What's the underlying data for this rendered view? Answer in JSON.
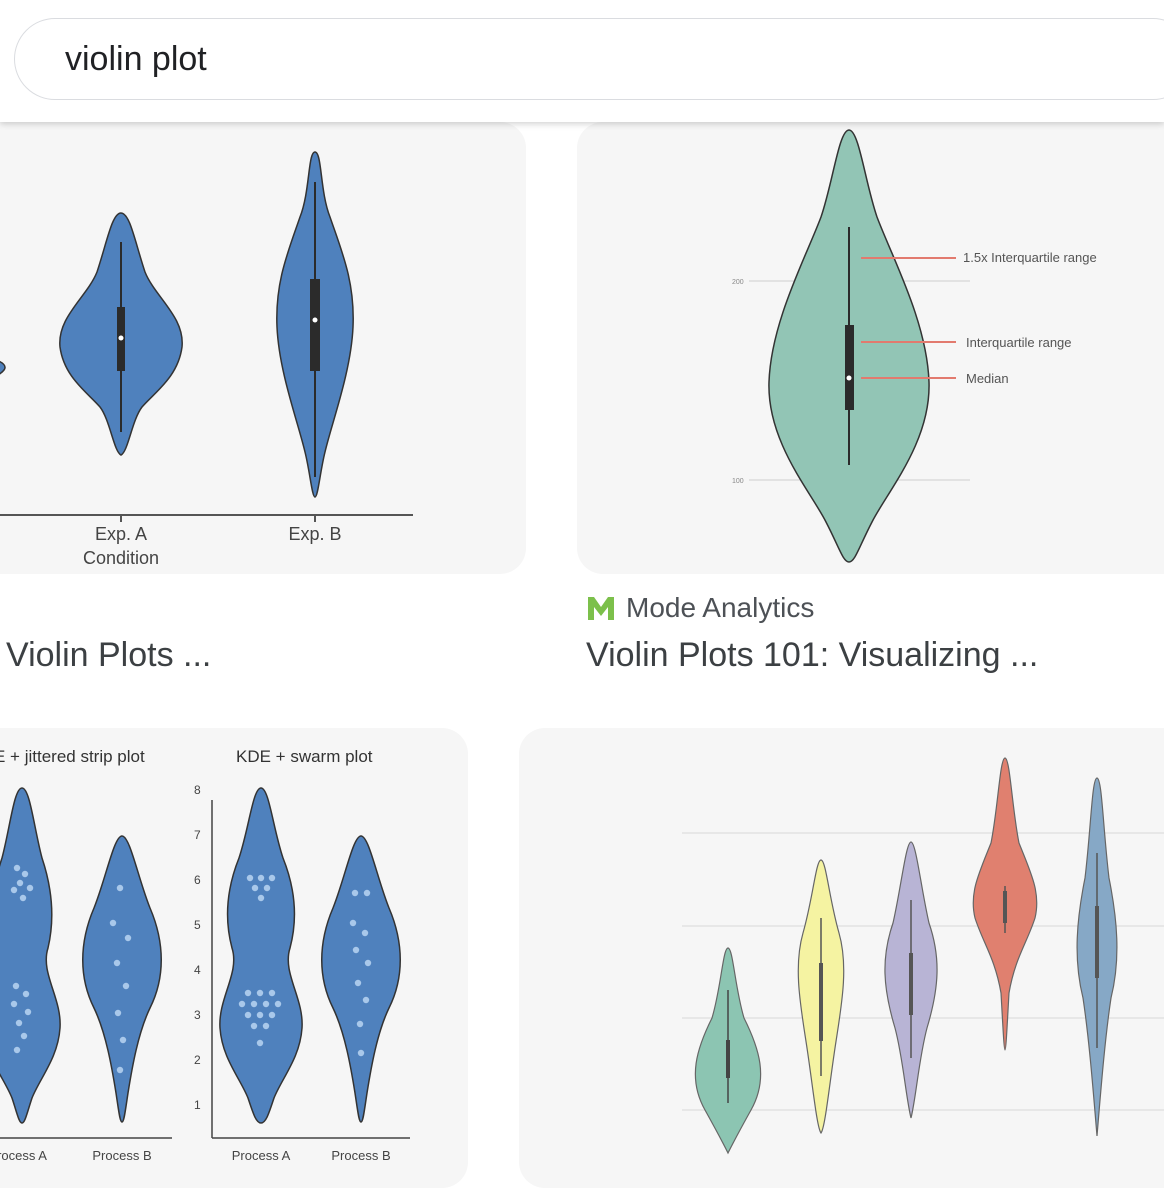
{
  "search": {
    "query": "violin plot"
  },
  "results": [
    {
      "title": "Violin Plots ...",
      "image": {
        "type": "violin",
        "xlabel": "Condition",
        "categories": [
          "Exp. A",
          "Exp. B"
        ],
        "color": "#4f81bd"
      }
    },
    {
      "source": "Mode Analytics",
      "source_icon": "mode-analytics-logo-icon",
      "title": "Violin Plots 101: Visualizing ...",
      "image": {
        "type": "violin",
        "color": "#92c5b5",
        "y_ticks": [
          "200",
          "100"
        ],
        "annotations": [
          "1.5x Interquartile range",
          "Interquartile range",
          "Median"
        ],
        "annotation_color": "#e27a6e"
      }
    },
    {
      "image": {
        "type": "violin",
        "color": "#4f81bd",
        "panels": [
          {
            "title": "E + jittered strip plot",
            "categories": [
              "rocess A",
              "Process B"
            ]
          },
          {
            "title": "KDE + swarm plot",
            "categories": [
              "Process A",
              "Process B"
            ],
            "y_ticks": [
              "8",
              "7",
              "6",
              "5",
              "4",
              "3",
              "2",
              "1"
            ]
          }
        ]
      }
    },
    {
      "image": {
        "type": "violin",
        "colors": [
          "#8cc5b2",
          "#f5f3a2",
          "#b8b4d5",
          "#e0806f",
          "#86a8c6"
        ]
      }
    }
  ]
}
